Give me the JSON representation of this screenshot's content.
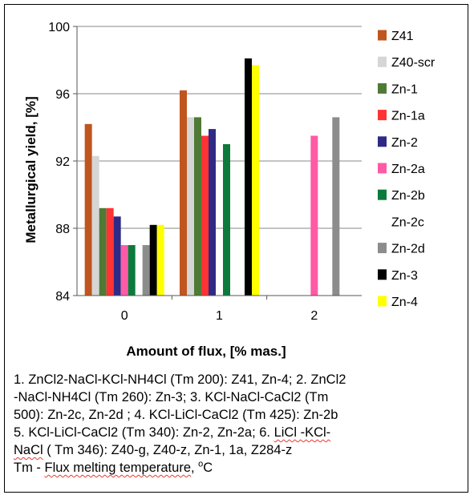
{
  "chart_data": {
    "type": "bar",
    "categories": [
      "0",
      "1",
      "2"
    ],
    "ylabel": "Metallurgical yield, [%]",
    "xlabel": "Amount of flux, [% mas.]",
    "ylim": [
      84,
      100
    ],
    "yticks": [
      84,
      88,
      92,
      96,
      100
    ],
    "grid": "horizontal",
    "legend_position": "right",
    "series": [
      {
        "name": "Z41",
        "color": "#c0551f",
        "values": [
          94.2,
          96.2,
          null
        ]
      },
      {
        "name": "Z40-scr",
        "color": "#d6d6d6",
        "values": [
          92.3,
          94.6,
          null
        ]
      },
      {
        "name": "Zn-1",
        "color": "#4e7a35",
        "values": [
          89.2,
          94.6,
          null
        ]
      },
      {
        "name": "Zn-1a",
        "color": "#ff3333",
        "values": [
          89.2,
          93.5,
          null
        ]
      },
      {
        "name": "Zn-2",
        "color": "#2e2a85",
        "values": [
          88.7,
          93.9,
          null
        ]
      },
      {
        "name": "Zn-2a",
        "color": "#ff5aa5",
        "values": [
          87.0,
          null,
          93.5
        ]
      },
      {
        "name": "Zn-2b",
        "color": "#0b7a3a",
        "values": [
          87.0,
          93.0,
          null
        ]
      },
      {
        "name": "Zn-2c",
        "color": "#ffffff",
        "values": [
          null,
          null,
          null
        ]
      },
      {
        "name": "Zn-2d",
        "color": "#8c8c8c",
        "values": [
          87.0,
          null,
          94.6
        ]
      },
      {
        "name": "Zn-3",
        "color": "#000000",
        "values": [
          88.2,
          98.1,
          null
        ]
      },
      {
        "name": "Zn-4",
        "color": "#ffff00",
        "values": [
          88.2,
          97.7,
          null
        ]
      }
    ]
  },
  "notes": {
    "line1": "1. ZnCl2-NaCl-KCl-NH4Cl (Tm 200): Z41, Zn-4;   2. ZnCl2",
    "line2": "-NaCl-NH4Cl (Tm 260): Zn-3;    3. KCl-NaCl-CaCl2 (Tm",
    "line3": "500): Zn-2c, Zn-2d ;   4. KCl-LiCl-CaCl2 (Tm 425): Zn-2b",
    "line4_a": "5. KCl-LiCl-CaCl2 (Tm 340): Zn-2, Zn-2a; 6. ",
    "line4_b": "LiCl -KCl-",
    "line5_a": "NaCl",
    "line5_b": " ( Tm 346): Z40-g, Z40-z, Zn-1, 1a,  Z284-z",
    "line6_a": "Tm - ",
    "line6_b": "Flux melting temperature",
    "line6_c": ", ",
    "line6_sup": "o",
    "line6_d": "C"
  }
}
